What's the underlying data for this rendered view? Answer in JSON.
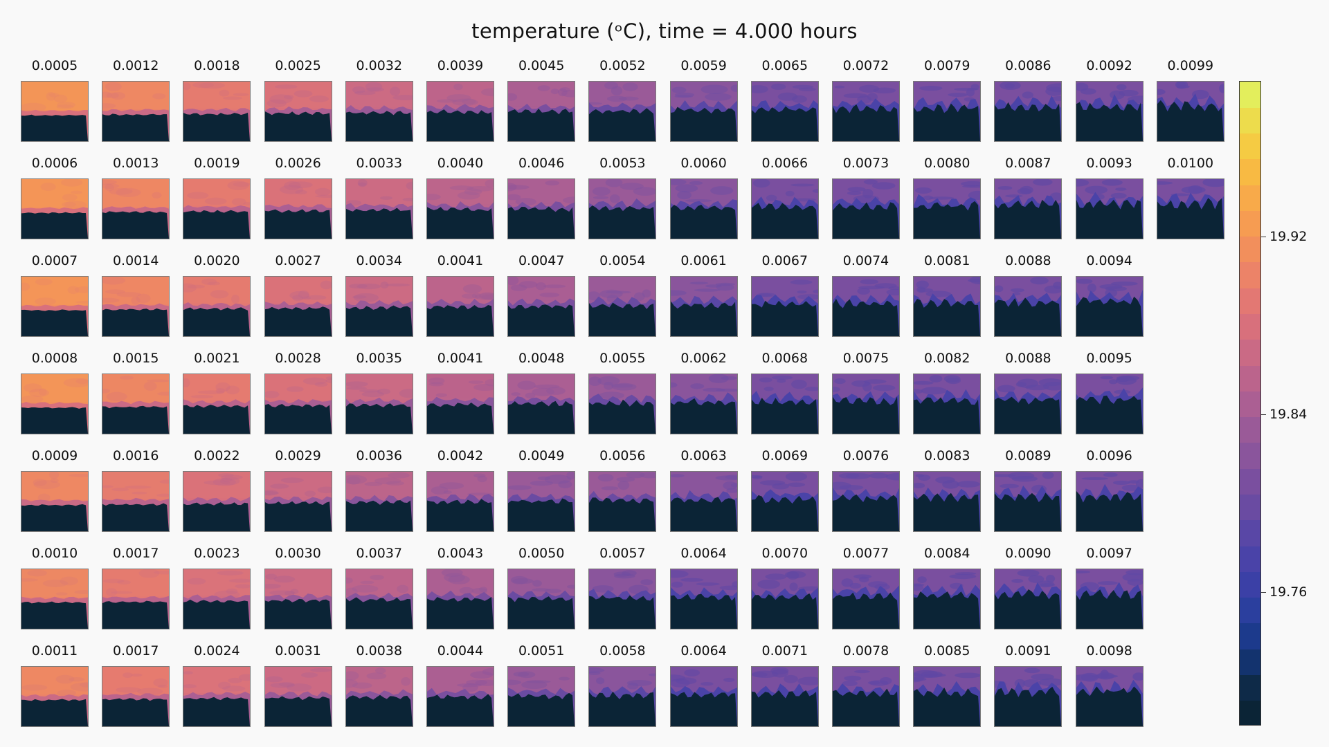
{
  "title": "temperature (ᵒC), time = 4.000 hours",
  "chart_data": {
    "type": "heatmap",
    "title": "temperature (ᵒC), time = 4.000 hours",
    "panel_grid": {
      "columns": 15,
      "rows": 7,
      "fill_order": "column-major"
    },
    "panel_titles": [
      "0.0005",
      "0.0006",
      "0.0007",
      "0.0008",
      "0.0009",
      "0.0010",
      "0.0011",
      "0.0012",
      "0.0013",
      "0.0014",
      "0.0015",
      "0.0016",
      "0.0017",
      "0.0017",
      "0.0018",
      "0.0019",
      "0.0020",
      "0.0021",
      "0.0022",
      "0.0023",
      "0.0024",
      "0.0025",
      "0.0026",
      "0.0027",
      "0.0028",
      "0.0029",
      "0.0030",
      "0.0031",
      "0.0032",
      "0.0033",
      "0.0034",
      "0.0035",
      "0.0036",
      "0.0037",
      "0.0038",
      "0.0039",
      "0.0040",
      "0.0041",
      "0.0041",
      "0.0042",
      "0.0043",
      "0.0044",
      "0.0045",
      "0.0046",
      "0.0047",
      "0.0048",
      "0.0049",
      "0.0050",
      "0.0051",
      "0.0052",
      "0.0053",
      "0.0054",
      "0.0055",
      "0.0056",
      "0.0057",
      "0.0058",
      "0.0059",
      "0.0060",
      "0.0061",
      "0.0062",
      "0.0063",
      "0.0064",
      "0.0064",
      "0.0065",
      "0.0066",
      "0.0067",
      "0.0068",
      "0.0069",
      "0.0070",
      "0.0071",
      "0.0072",
      "0.0073",
      "0.0074",
      "0.0075",
      "0.0076",
      "0.0077",
      "0.0078",
      "0.0079",
      "0.0080",
      "0.0081",
      "0.0082",
      "0.0083",
      "0.0084",
      "0.0085",
      "0.0086",
      "0.0087",
      "0.0088",
      "0.0088",
      "0.0089",
      "0.0090",
      "0.0091",
      "0.0092",
      "0.0093",
      "0.0094",
      "0.0095",
      "0.0096",
      "0.0097",
      "0.0098",
      "0.0099",
      "0.0100"
    ],
    "colorbar": {
      "ticks": [
        19.92,
        19.84,
        19.76
      ],
      "tick_labels": [
        "19.92",
        "19.84",
        "19.76"
      ],
      "range": [
        19.7,
        19.99
      ]
    },
    "colormap": [
      "#0b2436",
      "#0e2a48",
      "#13336e",
      "#1c3a8c",
      "#2b3f9e",
      "#3b40a6",
      "#4a43a8",
      "#5947a6",
      "#6a4ba2",
      "#7a4f9f",
      "#8a559c",
      "#9a5a98",
      "#ab5f93",
      "#bb648c",
      "#ca6a85",
      "#d8707c",
      "#e37873",
      "#ec8368",
      "#f28f5c",
      "#f69c52",
      "#f8aa4a",
      "#f8ba43",
      "#f5cb43",
      "#eddc4c",
      "#e3ee5c"
    ]
  }
}
